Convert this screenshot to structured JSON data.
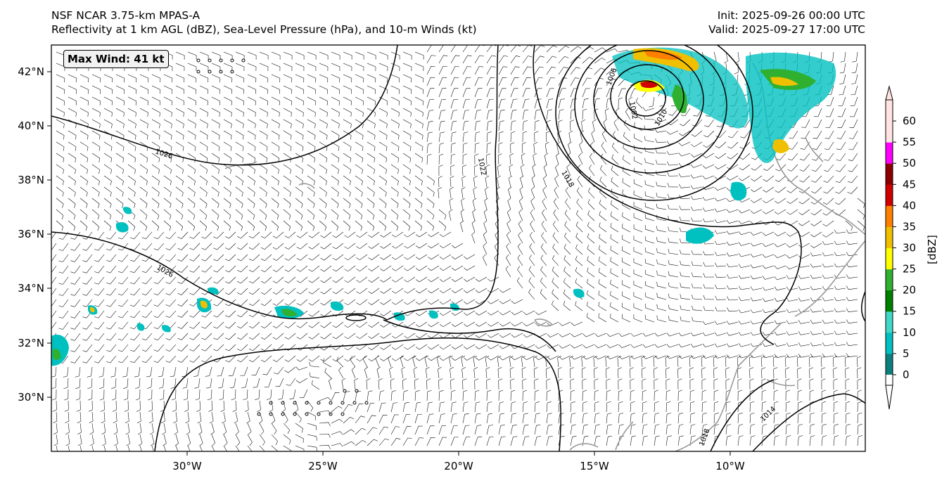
{
  "title": {
    "line1": "NSF NCAR 3.75-km MPAS-A",
    "line2": "Reflectivity at 1 km AGL (dBZ), Sea-Level Pressure (hPa), and 10-m Winds (kt)",
    "init": "Init: 2025-09-26 00:00 UTC",
    "valid": "Valid: 2025-09-27 17:00 UTC"
  },
  "annotation": {
    "max_wind": "Max Wind: 41 kt"
  },
  "axes": {
    "lat_ticks": [
      "42°N",
      "40°N",
      "38°N",
      "36°N",
      "34°N",
      "32°N",
      "30°N"
    ],
    "lon_ticks": [
      "30°W",
      "25°W",
      "20°W",
      "15°W",
      "10°W"
    ]
  },
  "colorbar": {
    "label": "[dBZ]",
    "ticks": [
      "0",
      "5",
      "10",
      "15",
      "20",
      "25",
      "30",
      "35",
      "40",
      "45",
      "50",
      "55",
      "60"
    ],
    "colors": [
      "#ffffff",
      "#0e7f7f",
      "#00c0c0",
      "#40d8c8",
      "#008000",
      "#30b030",
      "#ffff00",
      "#f0c000",
      "#ff8000",
      "#d00000",
      "#8b0000",
      "#ff00ff",
      "#ffe4e1"
    ]
  },
  "contours": {
    "labels": [
      "1026",
      "1022",
      "1026",
      "1018",
      "1010",
      "1006",
      "1002",
      "1018",
      "1014"
    ]
  }
}
